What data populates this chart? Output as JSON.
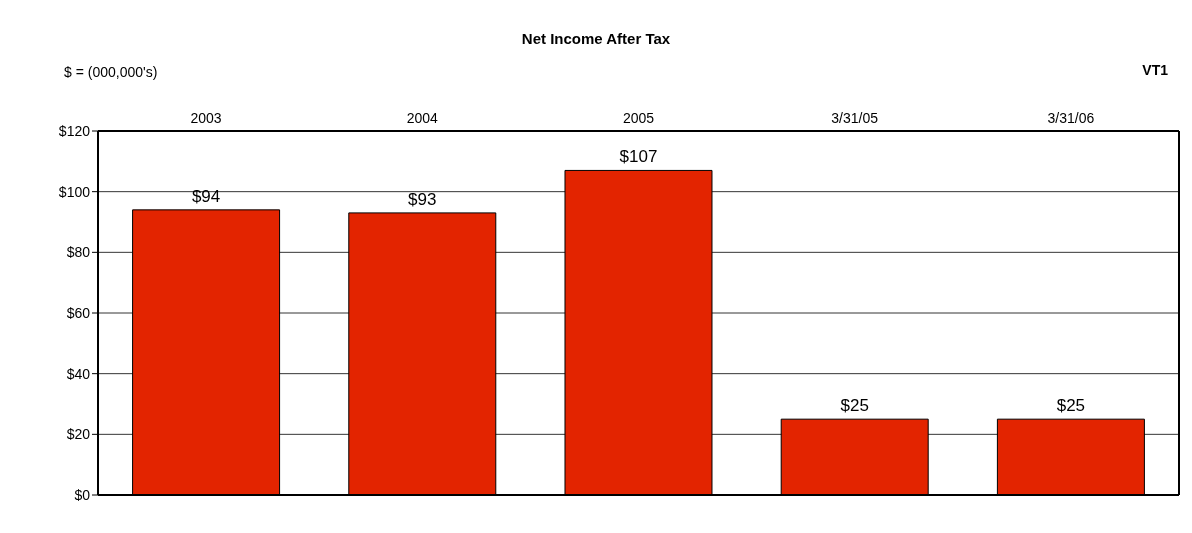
{
  "chart_data": {
    "type": "bar",
    "title": "Net Income After Tax",
    "annotations": [
      "$ = (000,000's)",
      "VT1"
    ],
    "categories": [
      "2003",
      "2004",
      "2005",
      "3/31/05",
      "3/31/06"
    ],
    "values": [
      94,
      93,
      107,
      25,
      25
    ],
    "value_labels": [
      "$94",
      "$93",
      "$107",
      "$25",
      "$25"
    ],
    "color": "#e32400",
    "ylim": [
      0,
      120
    ],
    "yticks": [
      {
        "value": 0,
        "label": "$0"
      },
      {
        "value": 20,
        "label": "$20"
      },
      {
        "value": 40,
        "label": "$40"
      },
      {
        "value": 60,
        "label": "$60"
      },
      {
        "value": 80,
        "label": "$80"
      },
      {
        "value": 100,
        "label": "$100"
      },
      {
        "value": 120,
        "label": "$120"
      }
    ],
    "grid": "y"
  }
}
